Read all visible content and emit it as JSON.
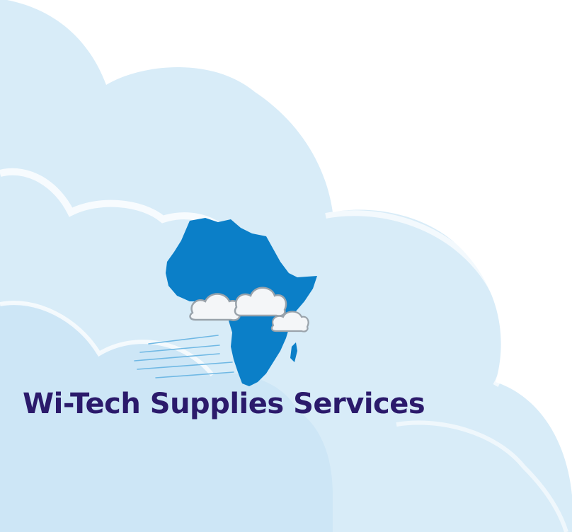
{
  "brand": {
    "name": "Wi-Tech Supplies Services",
    "text_color": "#2b1a6b"
  },
  "palette": {
    "sky_light": "#d8ecf8",
    "sky_mid": "#cde6f6",
    "sky_edge": "#ffffff",
    "africa_blue": "#0b7fc8",
    "cloud_white": "#f4f6f8",
    "cloud_shade": "#9aa3ab"
  },
  "icons": [
    "africa-map-icon",
    "cloud-icon",
    "speed-lines-icon"
  ]
}
